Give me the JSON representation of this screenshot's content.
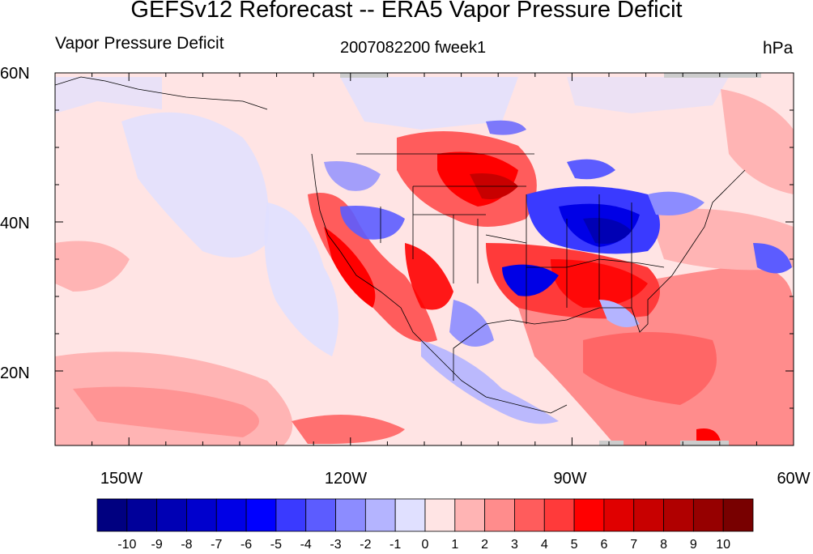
{
  "title": "GEFSv12 Reforecast -- ERA5 Vapor Pressure Deficit",
  "left_string": "Vapor Pressure Deficit",
  "center_string": "2007082200 fweek1",
  "right_string": "hPa",
  "lat_labels": [
    "60N",
    "40N",
    "20N"
  ],
  "lon_labels": [
    "150W",
    "120W",
    "90W",
    "60W"
  ],
  "map": {
    "lon_range": [
      -160,
      -60
    ],
    "lat_range": [
      10,
      60
    ],
    "background_color": "#ffe4e4"
  },
  "colorbar": {
    "tick_labels": [
      "-10",
      "-9",
      "-8",
      "-7",
      "-6",
      "-5",
      "-4",
      "-3",
      "-2",
      "-1",
      "0",
      "1",
      "2",
      "3",
      "4",
      "5",
      "6",
      "7",
      "8",
      "9",
      "10"
    ],
    "colors": [
      "#000080",
      "#00009a",
      "#0000b4",
      "#0000cd",
      "#0000e6",
      "#0000ff",
      "#3a3aff",
      "#5c5cff",
      "#8c8cff",
      "#b4b4ff",
      "#e0e0ff",
      "#ffe4e4",
      "#ffb4b4",
      "#ff8c8c",
      "#ff5c5c",
      "#ff3a3a",
      "#ff0000",
      "#e00000",
      "#c80000",
      "#b00000",
      "#960000",
      "#780000"
    ]
  }
}
